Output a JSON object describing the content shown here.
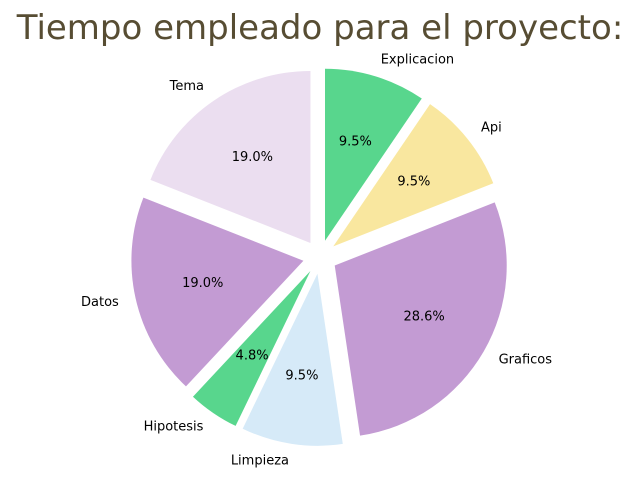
{
  "chart_data": {
    "type": "pie",
    "title": "Tiempo empleado para el proyecto:",
    "labels": [
      "Explicacion",
      "Api",
      "Graficos",
      "Limpieza",
      "Hipotesis",
      "Datos",
      "Tema"
    ],
    "values": [
      9.5,
      9.5,
      28.6,
      9.5,
      4.8,
      19.0,
      19.0
    ],
    "value_labels": [
      "9.5%",
      "9.5%",
      "28.6%",
      "9.5%",
      "4.8%",
      "19.0%",
      "19.0%"
    ],
    "colors": [
      "#58d68d",
      "#f9e79f",
      "#c39bd3",
      "#d6eaf8",
      "#58d68d",
      "#c39bd3",
      "#ebdef0"
    ],
    "start_angle_deg": 90,
    "direction": "clockwise",
    "exploded": true
  }
}
